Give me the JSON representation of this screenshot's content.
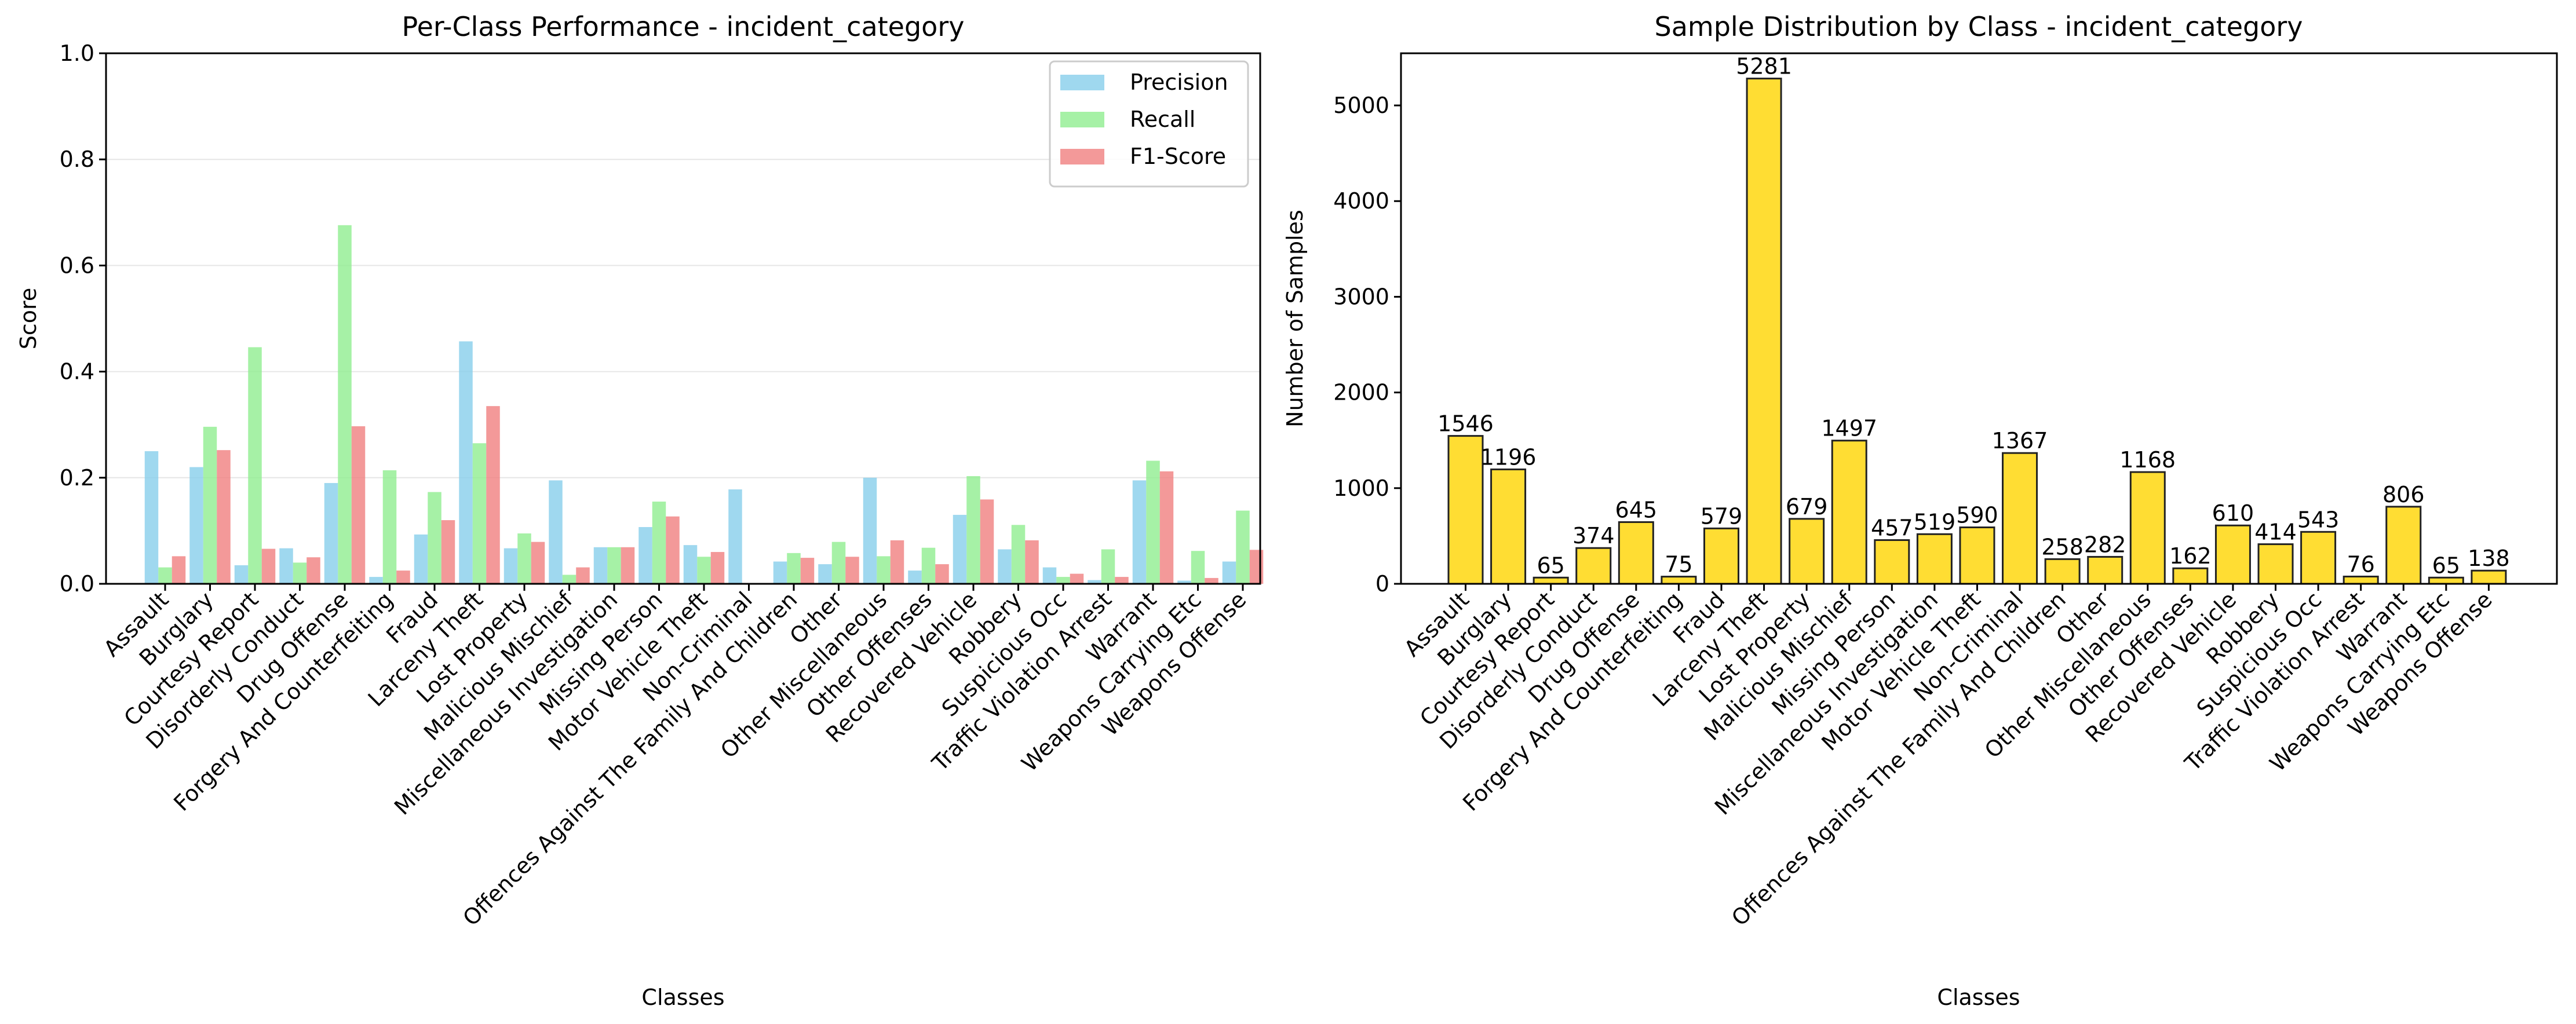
{
  "chart_data": [
    {
      "type": "bar",
      "title": "Per-Class Performance - incident_category",
      "xlabel": "Classes",
      "ylabel": "Score",
      "ylim": [
        0,
        1.0
      ],
      "yticks": [
        "0.0",
        "0.2",
        "0.4",
        "0.6",
        "0.8",
        "1.0"
      ],
      "grid": "y",
      "legend_position": "top-right",
      "categories": [
        "Assault",
        "Burglary",
        "Courtesy Report",
        "Disorderly Conduct",
        "Drug Offense",
        "Forgery And Counterfeiting",
        "Fraud",
        "Larceny Theft",
        "Lost Property",
        "Malicious Mischief",
        "Miscellaneous Investigation",
        "Missing Person",
        "Motor Vehicle Theft",
        "Non-Criminal",
        "Offences Against The Family And Children",
        "Other",
        "Other Miscellaneous",
        "Other Offenses",
        "Recovered Vehicle",
        "Robbery",
        "Suspicious Occ",
        "Traffic Violation Arrest",
        "Warrant",
        "Weapons Carrying Etc",
        "Weapons Offense"
      ],
      "series": [
        {
          "name": "Precision",
          "color": "#87ceeb",
          "values": [
            0.25,
            0.22,
            0.035,
            0.067,
            0.19,
            0.013,
            0.093,
            0.457,
            0.067,
            0.195,
            0.069,
            0.107,
            0.073,
            0.178,
            0.042,
            0.037,
            0.2,
            0.025,
            0.13,
            0.065,
            0.031,
            0.007,
            0.195,
            0.006,
            0.042
          ]
        },
        {
          "name": "Recall",
          "color": "#90ee90",
          "values": [
            0.031,
            0.296,
            0.446,
            0.04,
            0.676,
            0.214,
            0.173,
            0.265,
            0.095,
            0.017,
            0.069,
            0.155,
            0.051,
            0.0,
            0.058,
            0.079,
            0.052,
            0.068,
            0.203,
            0.111,
            0.013,
            0.065,
            0.232,
            0.062,
            0.138
          ]
        },
        {
          "name": "F1-Score",
          "color": "#f08080",
          "values": [
            0.052,
            0.252,
            0.066,
            0.05,
            0.297,
            0.025,
            0.12,
            0.335,
            0.079,
            0.031,
            0.069,
            0.127,
            0.06,
            0.0,
            0.049,
            0.051,
            0.082,
            0.037,
            0.159,
            0.082,
            0.019,
            0.013,
            0.212,
            0.011,
            0.064
          ]
        }
      ]
    },
    {
      "type": "bar",
      "title": "Sample Distribution by Class - incident_category",
      "xlabel": "Classes",
      "ylabel": "Number of Samples",
      "ylim": [
        0,
        5545
      ],
      "yticks": [
        "0",
        "1000",
        "2000",
        "3000",
        "4000",
        "5000"
      ],
      "grid": "none",
      "categories": [
        "Assault",
        "Burglary",
        "Courtesy Report",
        "Disorderly Conduct",
        "Drug Offense",
        "Forgery And Counterfeiting",
        "Fraud",
        "Larceny Theft",
        "Lost Property",
        "Malicious Mischief",
        "Missing Person",
        "Miscellaneous Investigation",
        "Motor Vehicle Theft",
        "Non-Criminal",
        "Offences Against The Family And Children",
        "Other",
        "Other Miscellaneous",
        "Other Offenses",
        "Recovered Vehicle",
        "Robbery",
        "Suspicious Occ",
        "Traffic Violation Arrest",
        "Warrant",
        "Weapons Carrying Etc",
        "Weapons Offense"
      ],
      "values": [
        1546,
        1196,
        65,
        374,
        645,
        75,
        579,
        5281,
        679,
        1497,
        457,
        519,
        590,
        1367,
        258,
        282,
        1168,
        162,
        610,
        414,
        543,
        76,
        806,
        65,
        138
      ],
      "bar_color": "#ffdd33",
      "edge_color": "#222222"
    }
  ]
}
